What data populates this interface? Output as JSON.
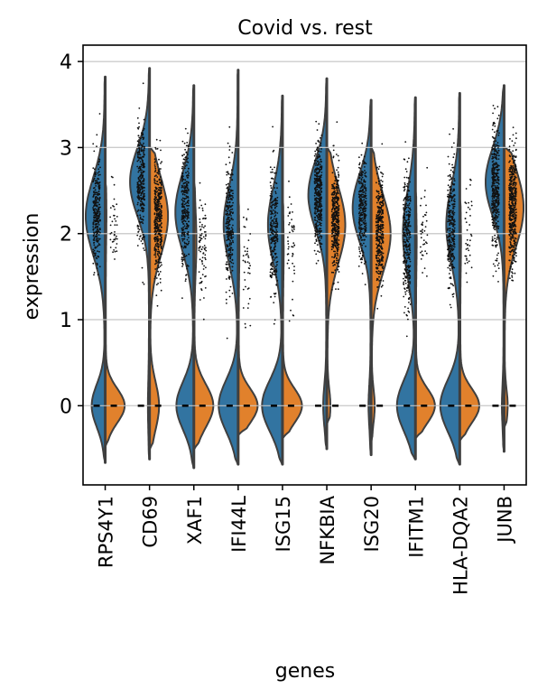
{
  "chart_data": {
    "type": "violin",
    "title": "Covid vs. rest",
    "xlabel": "genes",
    "ylabel": "expression",
    "ylim": [
      -0.92,
      4.19
    ],
    "yticks": [
      0,
      1,
      2,
      3,
      4
    ],
    "grid": "horizontal",
    "split": true,
    "colors": {
      "left": "#3274a1",
      "right": "#e1812c",
      "outline": "#3f3f3f",
      "grid": "#cccccc"
    },
    "categories": [
      "RPS4Y1",
      "CD69",
      "XAF1",
      "IFI44L",
      "ISG15",
      "NFKBIA",
      "ISG20",
      "IFITM1",
      "HLA-DQA2",
      "JUNB"
    ],
    "violins": [
      {
        "gene": "RPS4Y1",
        "left": {
          "high_mean": 2.2,
          "high_sd": 0.45,
          "high_amp": 0.95,
          "zero_amp": 0.65,
          "zero_sd": 0.25,
          "min": -0.66,
          "max": 3.82
        },
        "right": {
          "high_mean": 2.2,
          "high_sd": 0.3,
          "high_amp": 0.03,
          "zero_amp": 0.95,
          "zero_sd": 0.2,
          "min": -0.47,
          "max": 2.6
        },
        "pts_left": {
          "n": 300,
          "mean": 2.25,
          "sd": 0.3
        },
        "pts_right": {
          "n": 40,
          "mean": 2.15,
          "sd": 0.25
        }
      },
      {
        "gene": "CD69",
        "left": {
          "high_mean": 2.6,
          "high_sd": 0.4,
          "high_amp": 0.95,
          "zero_amp": 0.05,
          "zero_sd": 0.3,
          "min": -0.62,
          "max": 3.92
        },
        "right": {
          "high_mean": 2.2,
          "high_sd": 0.45,
          "high_amp": 0.9,
          "zero_amp": 0.45,
          "zero_sd": 0.28,
          "min": -0.5,
          "max": 3.0
        },
        "pts_left": {
          "n": 300,
          "mean": 2.6,
          "sd": 0.35
        },
        "pts_right": {
          "n": 400,
          "mean": 2.15,
          "sd": 0.35
        }
      },
      {
        "gene": "XAF1",
        "left": {
          "high_mean": 2.25,
          "high_sd": 0.45,
          "high_amp": 0.9,
          "zero_amp": 0.85,
          "zero_sd": 0.28,
          "min": -0.72,
          "max": 3.72
        },
        "right": {
          "high_mean": 1.9,
          "high_sd": 0.35,
          "high_amp": 0.1,
          "zero_amp": 0.95,
          "zero_sd": 0.25,
          "min": -0.5,
          "max": 2.6
        },
        "pts_left": {
          "n": 300,
          "mean": 2.3,
          "sd": 0.35
        },
        "pts_right": {
          "n": 80,
          "mean": 1.85,
          "sd": 0.3
        }
      },
      {
        "gene": "IFI44L",
        "left": {
          "high_mean": 2.1,
          "high_sd": 0.45,
          "high_amp": 0.7,
          "zero_amp": 0.95,
          "zero_sd": 0.3,
          "min": -0.68,
          "max": 3.9
        },
        "right": {
          "high_mean": 1.8,
          "high_sd": 0.3,
          "high_amp": 0.03,
          "zero_amp": 0.95,
          "zero_sd": 0.2,
          "min": -0.33,
          "max": 2.4
        },
        "pts_left": {
          "n": 250,
          "mean": 2.1,
          "sd": 0.35
        },
        "pts_right": {
          "n": 40,
          "mean": 1.7,
          "sd": 0.3
        }
      },
      {
        "gene": "ISG15",
        "left": {
          "high_mean": 2.1,
          "high_sd": 0.45,
          "high_amp": 0.7,
          "zero_amp": 1.0,
          "zero_sd": 0.3,
          "min": -0.68,
          "max": 3.6
        },
        "right": {
          "high_mean": 1.8,
          "high_sd": 0.3,
          "high_amp": 0.03,
          "zero_amp": 0.95,
          "zero_sd": 0.2,
          "min": -0.37,
          "max": 2.4
        },
        "pts_left": {
          "n": 250,
          "mean": 2.05,
          "sd": 0.35
        },
        "pts_right": {
          "n": 50,
          "mean": 1.75,
          "sd": 0.3
        }
      },
      {
        "gene": "NFKBIA",
        "left": {
          "high_mean": 2.45,
          "high_sd": 0.4,
          "high_amp": 0.9,
          "zero_amp": 0.15,
          "zero_sd": 0.25,
          "min": -0.5,
          "max": 3.8
        },
        "right": {
          "high_mean": 2.1,
          "high_sd": 0.45,
          "high_amp": 0.9,
          "zero_amp": 0.15,
          "zero_sd": 0.2,
          "min": -0.2,
          "max": 3.0
        },
        "pts_left": {
          "n": 400,
          "mean": 2.45,
          "sd": 0.3
        },
        "pts_right": {
          "n": 400,
          "mean": 2.15,
          "sd": 0.3
        }
      },
      {
        "gene": "ISG20",
        "left": {
          "high_mean": 2.3,
          "high_sd": 0.4,
          "high_amp": 0.9,
          "zero_amp": 0.1,
          "zero_sd": 0.25,
          "min": -0.57,
          "max": 3.55
        },
        "right": {
          "high_mean": 2.0,
          "high_sd": 0.45,
          "high_amp": 0.95,
          "zero_amp": 0.15,
          "zero_sd": 0.2,
          "min": -0.42,
          "max": 3.0
        },
        "pts_left": {
          "n": 300,
          "mean": 2.3,
          "sd": 0.3
        },
        "pts_right": {
          "n": 350,
          "mean": 2.05,
          "sd": 0.3
        }
      },
      {
        "gene": "IFITM1",
        "left": {
          "high_mean": 2.0,
          "high_sd": 0.5,
          "high_amp": 0.6,
          "zero_amp": 0.9,
          "zero_sd": 0.3,
          "min": -0.62,
          "max": 3.58
        },
        "right": {
          "high_mean": 1.9,
          "high_sd": 0.3,
          "high_amp": 0.03,
          "zero_amp": 0.95,
          "zero_sd": 0.2,
          "min": -0.37,
          "max": 2.5
        },
        "pts_left": {
          "n": 300,
          "mean": 1.95,
          "sd": 0.4
        },
        "pts_right": {
          "n": 40,
          "mean": 1.95,
          "sd": 0.3
        }
      },
      {
        "gene": "HLA-DQA2",
        "left": {
          "high_mean": 2.1,
          "high_sd": 0.45,
          "high_amp": 0.65,
          "zero_amp": 0.95,
          "zero_sd": 0.3,
          "min": -0.68,
          "max": 3.63
        },
        "right": {
          "high_mean": 1.9,
          "high_sd": 0.3,
          "high_amp": 0.03,
          "zero_amp": 0.95,
          "zero_sd": 0.2,
          "min": -0.4,
          "max": 2.4
        },
        "pts_left": {
          "n": 300,
          "mean": 2.1,
          "sd": 0.35
        },
        "pts_right": {
          "n": 40,
          "mean": 1.95,
          "sd": 0.3
        }
      },
      {
        "gene": "JUNB",
        "left": {
          "high_mean": 2.6,
          "high_sd": 0.4,
          "high_amp": 0.9,
          "zero_amp": 0.08,
          "zero_sd": 0.25,
          "min": -0.53,
          "max": 3.72
        },
        "right": {
          "high_mean": 2.3,
          "high_sd": 0.45,
          "high_amp": 0.95,
          "zero_amp": 0.15,
          "zero_sd": 0.2,
          "min": -0.25,
          "max": 3.0
        },
        "pts_left": {
          "n": 400,
          "mean": 2.5,
          "sd": 0.35
        },
        "pts_right": {
          "n": 450,
          "mean": 2.3,
          "sd": 0.35
        }
      }
    ]
  }
}
